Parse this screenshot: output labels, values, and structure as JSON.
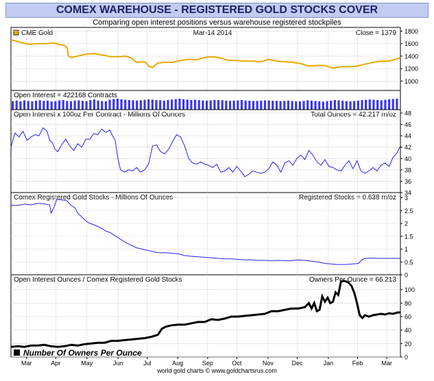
{
  "header": {
    "title": "COMEX WAREHOUSE - REGISTERED GOLD STOCKS COVER",
    "subtitle": "Comparing open interest positions versus warehouse registered stockpiles"
  },
  "footer": {
    "credit": "world gold charts © www.goldchartsrus.com"
  },
  "colors": {
    "gold": "#e8a800",
    "blue": "#2222ee",
    "black": "#000000",
    "title_bg": "#c2ccf2"
  },
  "chart_data": [
    {
      "type": "line",
      "panel": "gold",
      "legend": "CME Gold",
      "center_label": "Mar-14 2014",
      "right_label": "Close = 1379",
      "ylim": [
        850,
        1860
      ],
      "yticks": [
        1000,
        1200,
        1400,
        1600,
        1800
      ],
      "series": [
        {
          "color": "#e8a800",
          "x": [
            0,
            8,
            18,
            28,
            40,
            52,
            64,
            72,
            80,
            84,
            86,
            90,
            100,
            112,
            124,
            136,
            150,
            162,
            172,
            180,
            188,
            196,
            202,
            206,
            212,
            220,
            230,
            242,
            254,
            266,
            278,
            290,
            302,
            314,
            326,
            338,
            350,
            362,
            374,
            386,
            398,
            410,
            422,
            434,
            446,
            458,
            470,
            482,
            494,
            506,
            518,
            530,
            542,
            554,
            566,
            576,
            583
          ],
          "values": [
            1660,
            1640,
            1610,
            1590,
            1600,
            1600,
            1610,
            1590,
            1570,
            1540,
            1400,
            1380,
            1400,
            1430,
            1440,
            1420,
            1390,
            1390,
            1400,
            1370,
            1300,
            1310,
            1300,
            1240,
            1220,
            1290,
            1300,
            1300,
            1330,
            1350,
            1340,
            1380,
            1390,
            1370,
            1330,
            1330,
            1320,
            1320,
            1310,
            1350,
            1320,
            1310,
            1300,
            1280,
            1240,
            1250,
            1250,
            1210,
            1230,
            1230,
            1240,
            1270,
            1300,
            1320,
            1320,
            1350,
            1379
          ]
        }
      ]
    },
    {
      "type": "bar",
      "panel": "open-interest",
      "left_label": "Open Interest = 422168 Contracts",
      "bar_heights": [
        0.62,
        0.66,
        0.6,
        0.68,
        0.63,
        0.61,
        0.65,
        0.69,
        0.64,
        0.66,
        0.6,
        0.62,
        0.67,
        0.7,
        0.63,
        0.61,
        0.66,
        0.68,
        0.64,
        0.62,
        0.7,
        0.74,
        0.66,
        0.63,
        0.61,
        0.72,
        0.78,
        0.8,
        0.76,
        0.72,
        0.7,
        0.68,
        0.66,
        0.69,
        0.72,
        0.75,
        0.73,
        0.7,
        0.68,
        0.66,
        0.7,
        0.74,
        0.77,
        0.8,
        0.76,
        0.73,
        0.7,
        0.72,
        0.69,
        0.67,
        0.66,
        0.68,
        0.71,
        0.7,
        0.69,
        0.66,
        0.64,
        0.66,
        0.68,
        0.7,
        0.67,
        0.65,
        0.63,
        0.64,
        0.66,
        0.68,
        0.67,
        0.65,
        0.64,
        0.62,
        0.64,
        0.66,
        0.63,
        0.61,
        0.6,
        0.64,
        0.68,
        0.66,
        0.63,
        0.6,
        0.58,
        0.62,
        0.66,
        0.7,
        0.68,
        0.65,
        0.62,
        0.6,
        0.63,
        0.66,
        0.7,
        0.72,
        0.74,
        0.72,
        0.7,
        0.68,
        0.72,
        0.76,
        0.78,
        0.8
      ]
    },
    {
      "type": "line",
      "panel": "total-ounces",
      "left_label": "Open Interest x 100oz Per Contract - Millions Of Ounces",
      "right_label": "Total Ounces = 42.217 m/oz",
      "ylim": [
        34,
        48.6
      ],
      "yticks": [
        34,
        36,
        38,
        40,
        42,
        44,
        46,
        48
      ],
      "series": [
        {
          "color": "#2222ee",
          "x": [
            0,
            6,
            12,
            18,
            24,
            30,
            36,
            42,
            48,
            54,
            58,
            62,
            66,
            70,
            76,
            82,
            88,
            94,
            100,
            106,
            112,
            118,
            124,
            130,
            136,
            142,
            148,
            152,
            156,
            160,
            164,
            170,
            176,
            182,
            188,
            194,
            200,
            206,
            212,
            218,
            224,
            230,
            236,
            242,
            248,
            254,
            260,
            266,
            272,
            278,
            284,
            290,
            296,
            302,
            308,
            314,
            320,
            326,
            332,
            338,
            344,
            350,
            356,
            362,
            368,
            374,
            380,
            386,
            392,
            398,
            404,
            410,
            416,
            422,
            428,
            434,
            440,
            446,
            452,
            458,
            464,
            470,
            476,
            482,
            488,
            494,
            500,
            506,
            512,
            518,
            524,
            530,
            536,
            542,
            548,
            554,
            560,
            566,
            572,
            578,
            583
          ],
          "values": [
            42.0,
            44.5,
            43.8,
            44.8,
            43.2,
            43.8,
            44.2,
            44.0,
            45.4,
            44.8,
            43.2,
            42.8,
            41.6,
            41.2,
            42.4,
            43.4,
            42.2,
            41.4,
            42.6,
            42.0,
            43.4,
            43.4,
            44.4,
            44.2,
            45.2,
            44.6,
            45.0,
            44.0,
            43.2,
            40.0,
            38.0,
            37.6,
            38.0,
            37.8,
            38.4,
            37.6,
            38.0,
            39.0,
            42.2,
            42.4,
            41.2,
            40.8,
            41.6,
            43.0,
            44.2,
            43.8,
            42.2,
            40.0,
            39.2,
            39.0,
            39.4,
            39.0,
            38.8,
            38.4,
            39.0,
            37.6,
            37.8,
            38.4,
            37.6,
            38.6,
            37.8,
            36.8,
            37.2,
            37.8,
            37.6,
            37.4,
            37.6,
            38.2,
            39.4,
            38.8,
            37.6,
            39.2,
            39.6,
            38.8,
            40.0,
            40.6,
            39.8,
            41.4,
            40.6,
            39.4,
            38.8,
            39.8,
            38.6,
            38.4,
            38.0,
            37.8,
            38.8,
            39.6,
            38.2,
            39.6,
            37.8,
            37.4,
            37.8,
            38.4,
            37.8,
            38.8,
            39.2,
            38.6,
            40.2,
            41.0,
            42.2
          ]
        }
      ]
    },
    {
      "type": "line",
      "panel": "registered-stocks",
      "left_label": "Comex Registered Gold Stocks - Millions Of Ounces",
      "right_label": "Registered Stocks = 0.638 m/oz",
      "ylim": [
        0,
        3.2
      ],
      "yticks": [
        0,
        0.5,
        1,
        1.5,
        2,
        2.5,
        3
      ],
      "series": [
        {
          "color": "#2222ee",
          "x": [
            0,
            10,
            20,
            30,
            40,
            50,
            58,
            60,
            64,
            68,
            70,
            74,
            80,
            84,
            90,
            96,
            100,
            106,
            112,
            118,
            124,
            130,
            136,
            142,
            148,
            154,
            160,
            166,
            172,
            180,
            188,
            196,
            204,
            210,
            216,
            222,
            230,
            240,
            250,
            260,
            270,
            280,
            290,
            300,
            310,
            320,
            330,
            340,
            350,
            360,
            370,
            380,
            390,
            400,
            410,
            420,
            430,
            440,
            450,
            460,
            470,
            480,
            490,
            500,
            510,
            520,
            526,
            532,
            540,
            550,
            560,
            570,
            583
          ],
          "values": [
            2.7,
            2.7,
            2.75,
            2.72,
            2.78,
            2.76,
            2.72,
            2.4,
            2.6,
            2.9,
            2.95,
            2.92,
            2.9,
            2.88,
            2.7,
            2.6,
            2.4,
            2.25,
            2.1,
            2.0,
            1.95,
            1.88,
            1.8,
            1.7,
            1.65,
            1.55,
            1.45,
            1.35,
            1.25,
            1.15,
            1.05,
            1.0,
            0.95,
            0.92,
            0.88,
            0.86,
            0.86,
            0.84,
            0.82,
            0.75,
            0.72,
            0.7,
            0.68,
            0.66,
            0.64,
            0.62,
            0.62,
            0.6,
            0.58,
            0.58,
            0.56,
            0.56,
            0.55,
            0.56,
            0.55,
            0.55,
            0.58,
            0.56,
            0.53,
            0.5,
            0.44,
            0.42,
            0.4,
            0.4,
            0.42,
            0.44,
            0.6,
            0.64,
            0.65,
            0.64,
            0.64,
            0.64,
            0.638
          ]
        }
      ]
    },
    {
      "type": "line",
      "panel": "owners-per-ounce",
      "left_label": "Open Interest Ounces / Comex Registered Gold Stocks",
      "right_label": "Owners Per Ounce = 66.213",
      "legend": "Number Of Owners Per Ounce",
      "ylim": [
        0,
        122
      ],
      "yticks": [
        0,
        20,
        40,
        60,
        80,
        100
      ],
      "series": [
        {
          "color": "#000000",
          "x": [
            0,
            10,
            20,
            30,
            40,
            50,
            60,
            70,
            80,
            90,
            100,
            110,
            120,
            130,
            140,
            150,
            160,
            170,
            180,
            190,
            200,
            210,
            220,
            226,
            232,
            240,
            250,
            260,
            270,
            280,
            290,
            300,
            310,
            320,
            330,
            340,
            350,
            360,
            370,
            380,
            390,
            400,
            410,
            420,
            430,
            440,
            446,
            450,
            454,
            458,
            462,
            466,
            470,
            474,
            478,
            482,
            486,
            490,
            494,
            498,
            502,
            506,
            510,
            514,
            518,
            522,
            526,
            530,
            536,
            542,
            548,
            554,
            560,
            566,
            572,
            578,
            583
          ],
          "values": [
            15,
            16,
            15,
            17,
            17,
            18,
            16,
            15,
            16,
            18,
            17,
            19,
            20,
            21,
            21,
            24,
            24,
            25,
            26,
            27,
            28,
            30,
            33,
            42,
            45,
            47,
            48,
            48,
            50,
            52,
            52,
            56,
            55,
            57,
            60,
            60,
            61,
            62,
            63,
            64,
            68,
            68,
            70,
            72,
            72,
            74,
            80,
            72,
            80,
            68,
            70,
            90,
            82,
            88,
            80,
            82,
            96,
            92,
            112,
            113,
            112,
            110,
            105,
            95,
            80,
            62,
            58,
            62,
            60,
            62,
            63,
            64,
            63,
            65,
            64,
            66,
            66.2
          ]
        }
      ]
    }
  ],
  "x_axis": {
    "months": [
      "Mar",
      "Apr",
      "May",
      "Jun",
      "Jul",
      "Aug",
      "Sep",
      "Oct",
      "Nov",
      "Dec",
      "Jan",
      "Feb",
      "Mar"
    ],
    "month_pos": [
      0.04,
      0.115,
      0.195,
      0.275,
      0.35,
      0.428,
      0.505,
      0.58,
      0.66,
      0.735,
      0.815,
      0.89,
      0.965
    ]
  }
}
